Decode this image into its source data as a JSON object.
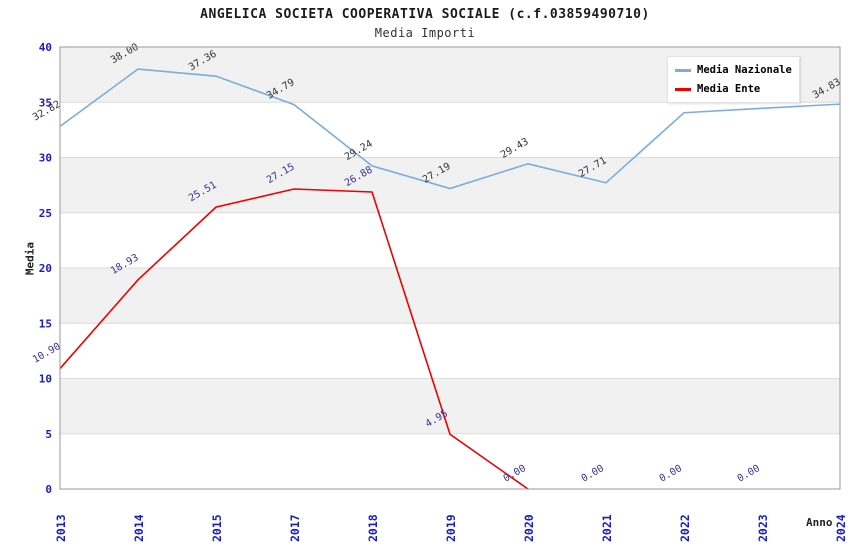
{
  "header": {
    "title": "ANGELICA SOCIETA COOPERATIVA SOCIALE (c.f.03859490710)",
    "subtitle": "Media Importi"
  },
  "axes": {
    "y_label": "Media",
    "x_label": "Anno",
    "tick_color": "#1a1acd",
    "y_ticks": [
      0,
      5,
      10,
      15,
      20,
      25,
      30,
      35,
      40
    ],
    "x_ticks": [
      "2013",
      "2014",
      "2015",
      "2017",
      "2018",
      "2019",
      "2020",
      "2021",
      "2022",
      "2023",
      "2024"
    ]
  },
  "legend": {
    "items": [
      {
        "label": "Media Nazionale",
        "color": "#7aadde"
      },
      {
        "label": "Media Ente",
        "color": "#ee0000"
      }
    ]
  },
  "colors": {
    "plot_band": "#f1f1f1",
    "gridline": "#dcdcdc",
    "plot_border": "#9a9a9a"
  },
  "chart_data": {
    "type": "line",
    "title": "ANGELICA SOCIETA COOPERATIVA SOCIALE (c.f.03859490710)",
    "subtitle": "Media Importi",
    "xlabel": "Anno",
    "ylabel": "Media",
    "ylim": [
      0,
      40
    ],
    "grid": true,
    "legend_position": "top-right",
    "band_values": [
      35,
      25,
      15,
      5
    ],
    "categories": [
      "2013",
      "2014",
      "2015",
      "2017",
      "2018",
      "2019",
      "2020",
      "2021",
      "2022",
      "2023",
      "2024"
    ],
    "series": [
      {
        "name": "Media Nazionale",
        "color": "#7aadde",
        "label_color": "#333333",
        "values": [
          32.82,
          38.0,
          37.36,
          34.79,
          29.24,
          27.19,
          29.43,
          27.71,
          34.05,
          34.45,
          34.83
        ],
        "labels": [
          "32.82",
          "38.00",
          "37.36",
          "34.79",
          "29.24",
          "27.19",
          "29.43",
          "27.71",
          "",
          "",
          "34.83"
        ]
      },
      {
        "name": "Media Ente",
        "color": "#ee0000",
        "label_color": "#333399",
        "line_end_index": 6,
        "values": [
          10.9,
          18.93,
          25.51,
          27.15,
          26.88,
          4.95,
          0.0,
          0.0,
          0.0,
          0.0,
          null
        ],
        "labels": [
          "10.90",
          "18.93",
          "25.51",
          "27.15",
          "26.88",
          "4.95",
          "0.00",
          "0.00",
          "0.00",
          "0.00",
          ""
        ]
      }
    ]
  }
}
